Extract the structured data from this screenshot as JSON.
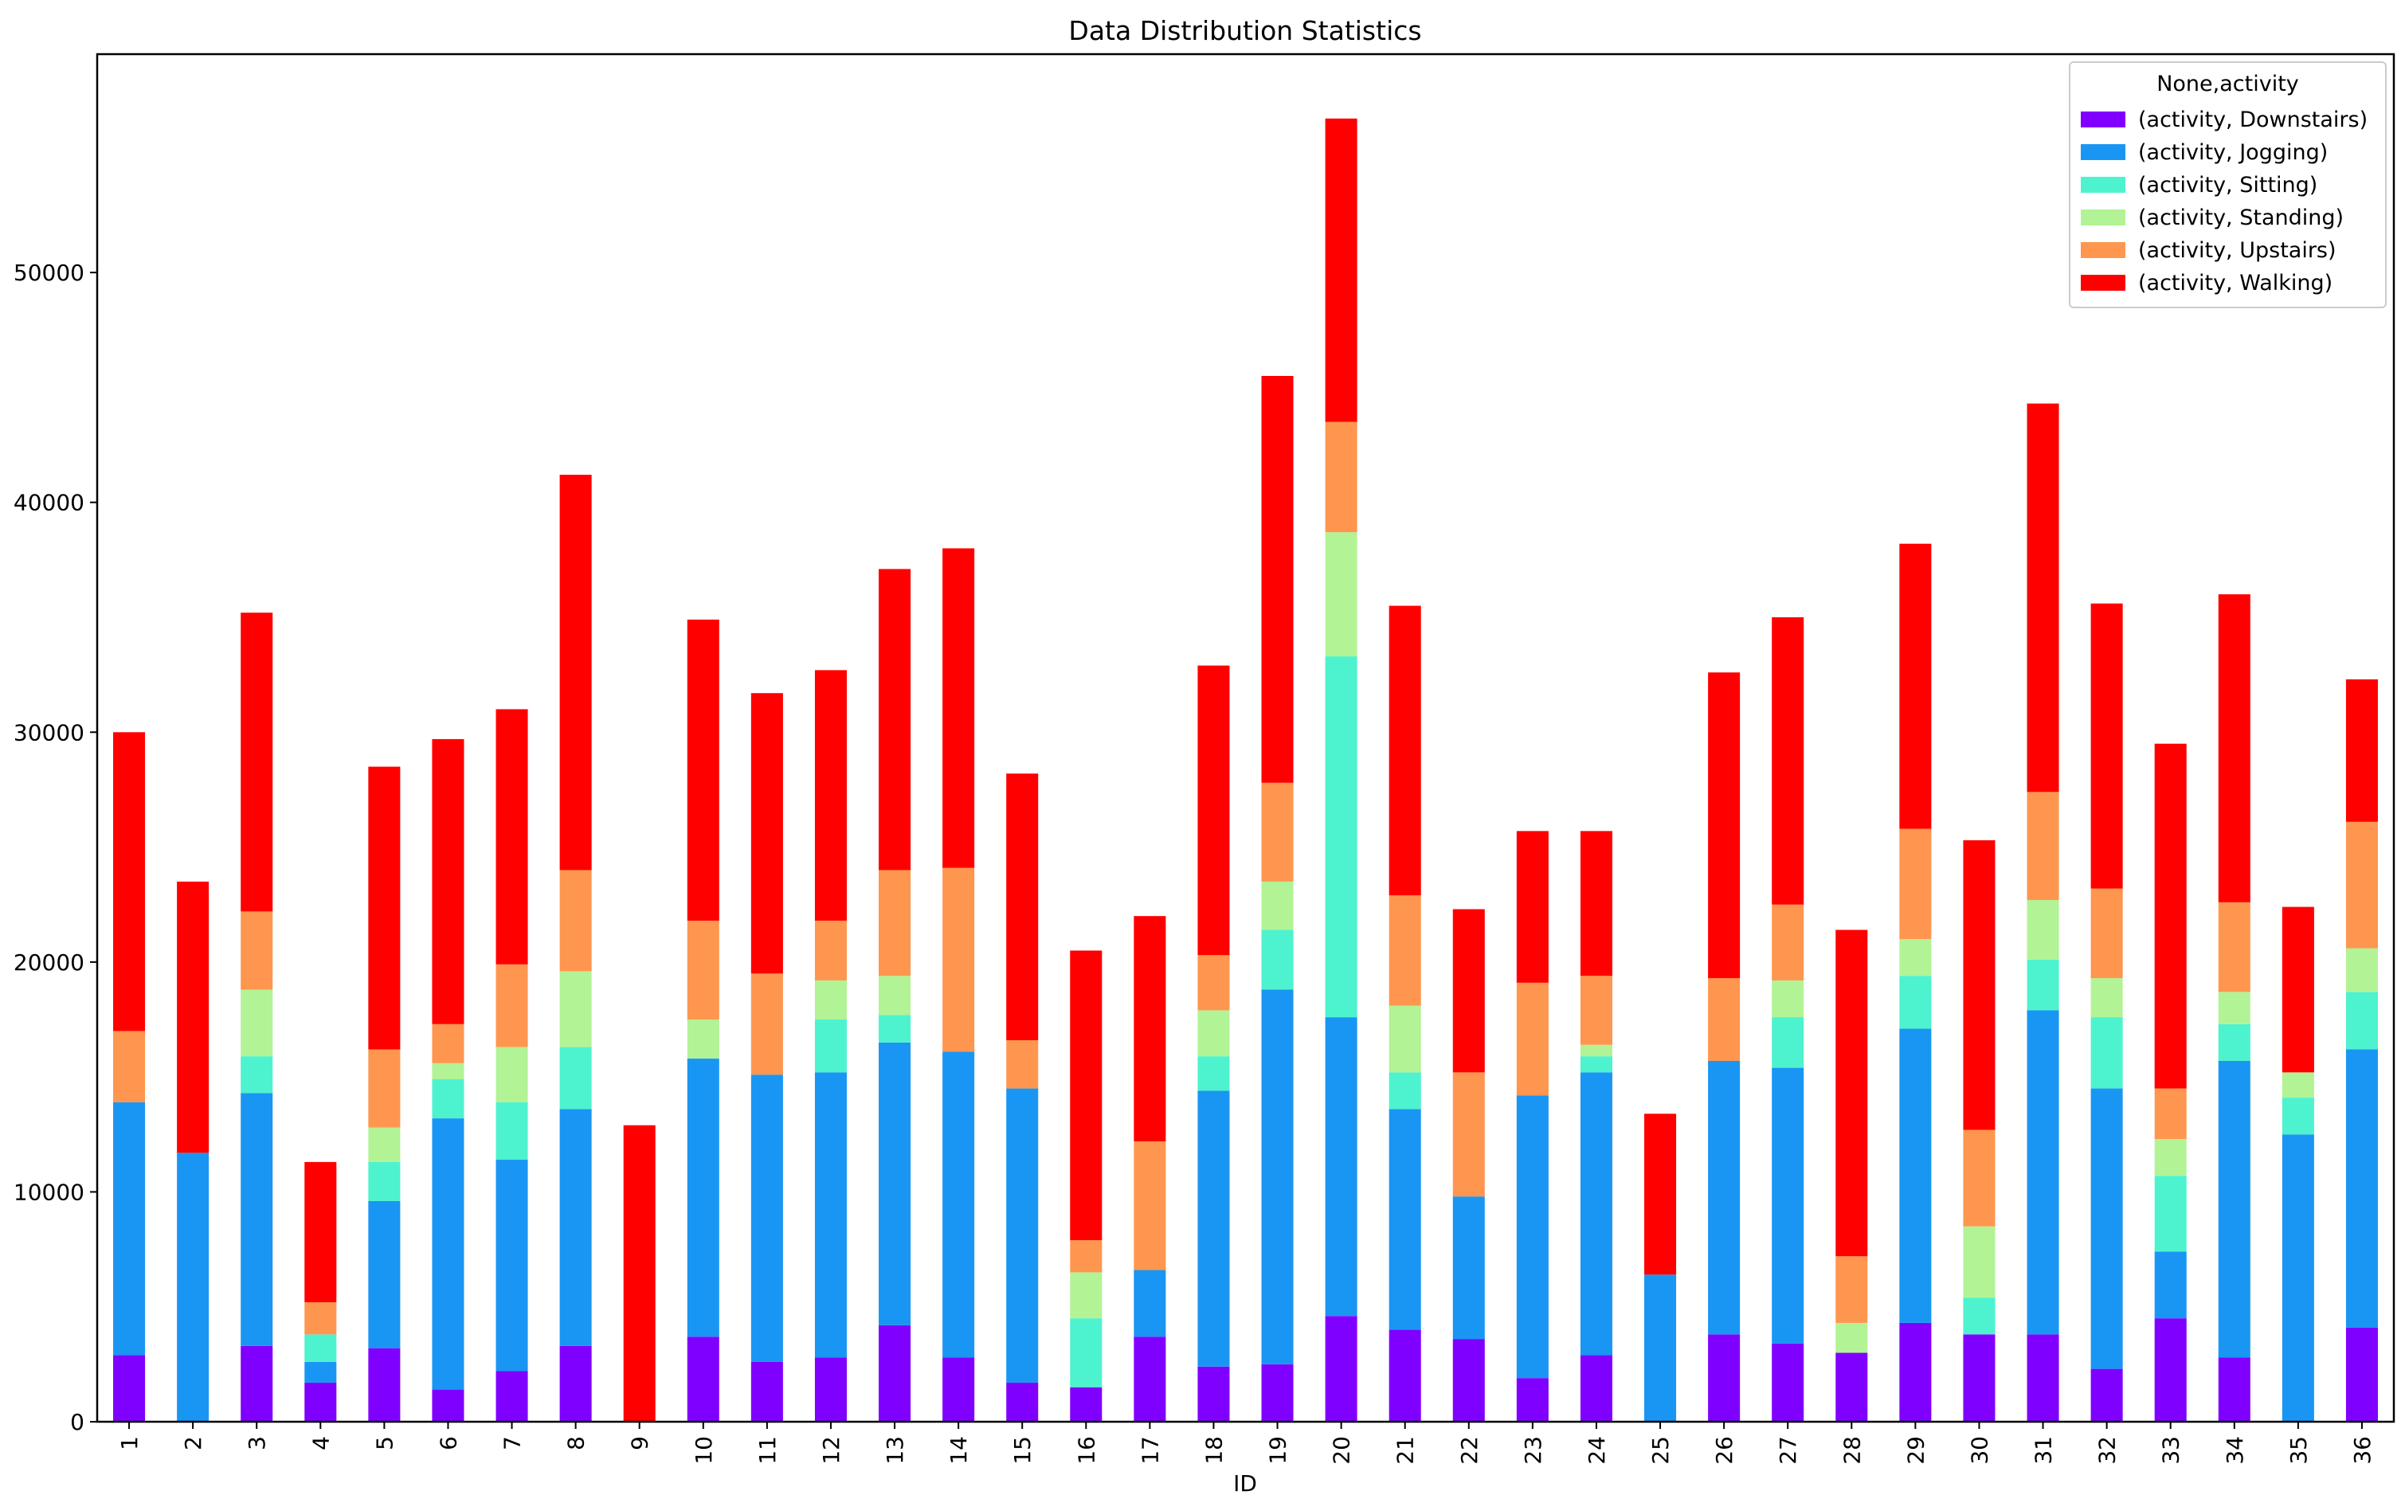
{
  "chart_data": {
    "type": "bar",
    "stacked": true,
    "title": "Data Distribution Statistics",
    "xlabel": "ID",
    "ylabel": "",
    "ylim": [
      0,
      59500
    ],
    "yticks": [
      0,
      10000,
      20000,
      30000,
      40000,
      50000
    ],
    "ytick_labels": [
      "0",
      "10000",
      "20000",
      "30000",
      "40000",
      "50000"
    ],
    "categories": [
      "1",
      "2",
      "3",
      "4",
      "5",
      "6",
      "7",
      "8",
      "9",
      "10",
      "11",
      "12",
      "13",
      "14",
      "15",
      "16",
      "17",
      "18",
      "19",
      "20",
      "21",
      "22",
      "23",
      "24",
      "25",
      "26",
      "27",
      "28",
      "29",
      "30",
      "31",
      "32",
      "33",
      "34",
      "35",
      "36"
    ],
    "legend": {
      "title": "None,activity",
      "placement": "top-right"
    },
    "grid": false,
    "series": [
      {
        "name": "(activity, Downstairs)",
        "color": "#8000ff",
        "values": [
          2900,
          0,
          3300,
          1700,
          3200,
          1400,
          2200,
          3300,
          0,
          3700,
          2600,
          2800,
          4200,
          2800,
          1700,
          1500,
          3700,
          2400,
          2500,
          4600,
          4000,
          3600,
          1900,
          2900,
          0,
          3800,
          3400,
          3000,
          4300,
          3800,
          3800,
          2300,
          4500,
          2800,
          0,
          4100
        ]
      },
      {
        "name": "(activity, Jogging)",
        "color": "#1996f3",
        "values": [
          11000,
          11700,
          11000,
          900,
          6400,
          11800,
          9200,
          10300,
          0,
          12100,
          12500,
          12400,
          12300,
          13300,
          12800,
          0,
          2900,
          12000,
          16300,
          13000,
          9600,
          6200,
          12300,
          12300,
          6400,
          11900,
          12000,
          0,
          12800,
          0,
          14100,
          12200,
          2900,
          12900,
          12500,
          12100
        ]
      },
      {
        "name": "(activity, Sitting)",
        "color": "#4df3ce",
        "values": [
          0,
          0,
          1600,
          1200,
          1700,
          1700,
          2500,
          2700,
          0,
          0,
          0,
          2300,
          1200,
          0,
          0,
          3000,
          0,
          1500,
          2600,
          15700,
          1600,
          0,
          0,
          700,
          0,
          0,
          2200,
          0,
          2300,
          1600,
          2200,
          3100,
          3300,
          1600,
          1600,
          2500
        ]
      },
      {
        "name": "(activity, Standing)",
        "color": "#b2f396",
        "values": [
          0,
          0,
          2900,
          0,
          1500,
          700,
          2400,
          3300,
          0,
          1700,
          0,
          1700,
          1700,
          0,
          0,
          2000,
          0,
          2000,
          2100,
          5400,
          2900,
          0,
          0,
          500,
          0,
          0,
          1600,
          1300,
          1600,
          3100,
          2600,
          1700,
          1600,
          1400,
          1100,
          1900
        ]
      },
      {
        "name": "(activity, Upstairs)",
        "color": "#ff964f",
        "values": [
          3100,
          0,
          3400,
          1400,
          3400,
          1700,
          3600,
          4400,
          0,
          4300,
          4400,
          2600,
          4600,
          8000,
          2100,
          1400,
          5600,
          2400,
          4300,
          4800,
          4800,
          5400,
          4900,
          3000,
          0,
          3600,
          3300,
          2900,
          4800,
          4200,
          4700,
          3900,
          2200,
          3900,
          0,
          5500
        ]
      },
      {
        "name": "(activity, Walking)",
        "color": "#ff0000",
        "values": [
          13000,
          11800,
          13000,
          6100,
          12300,
          12400,
          11100,
          17200,
          12900,
          13100,
          12200,
          10900,
          13100,
          13900,
          11600,
          12600,
          9800,
          12600,
          17700,
          13200,
          12600,
          7100,
          6600,
          6300,
          7000,
          13300,
          12500,
          14200,
          12400,
          12600,
          16900,
          12400,
          15000,
          13400,
          7200,
          6200
        ]
      }
    ]
  }
}
